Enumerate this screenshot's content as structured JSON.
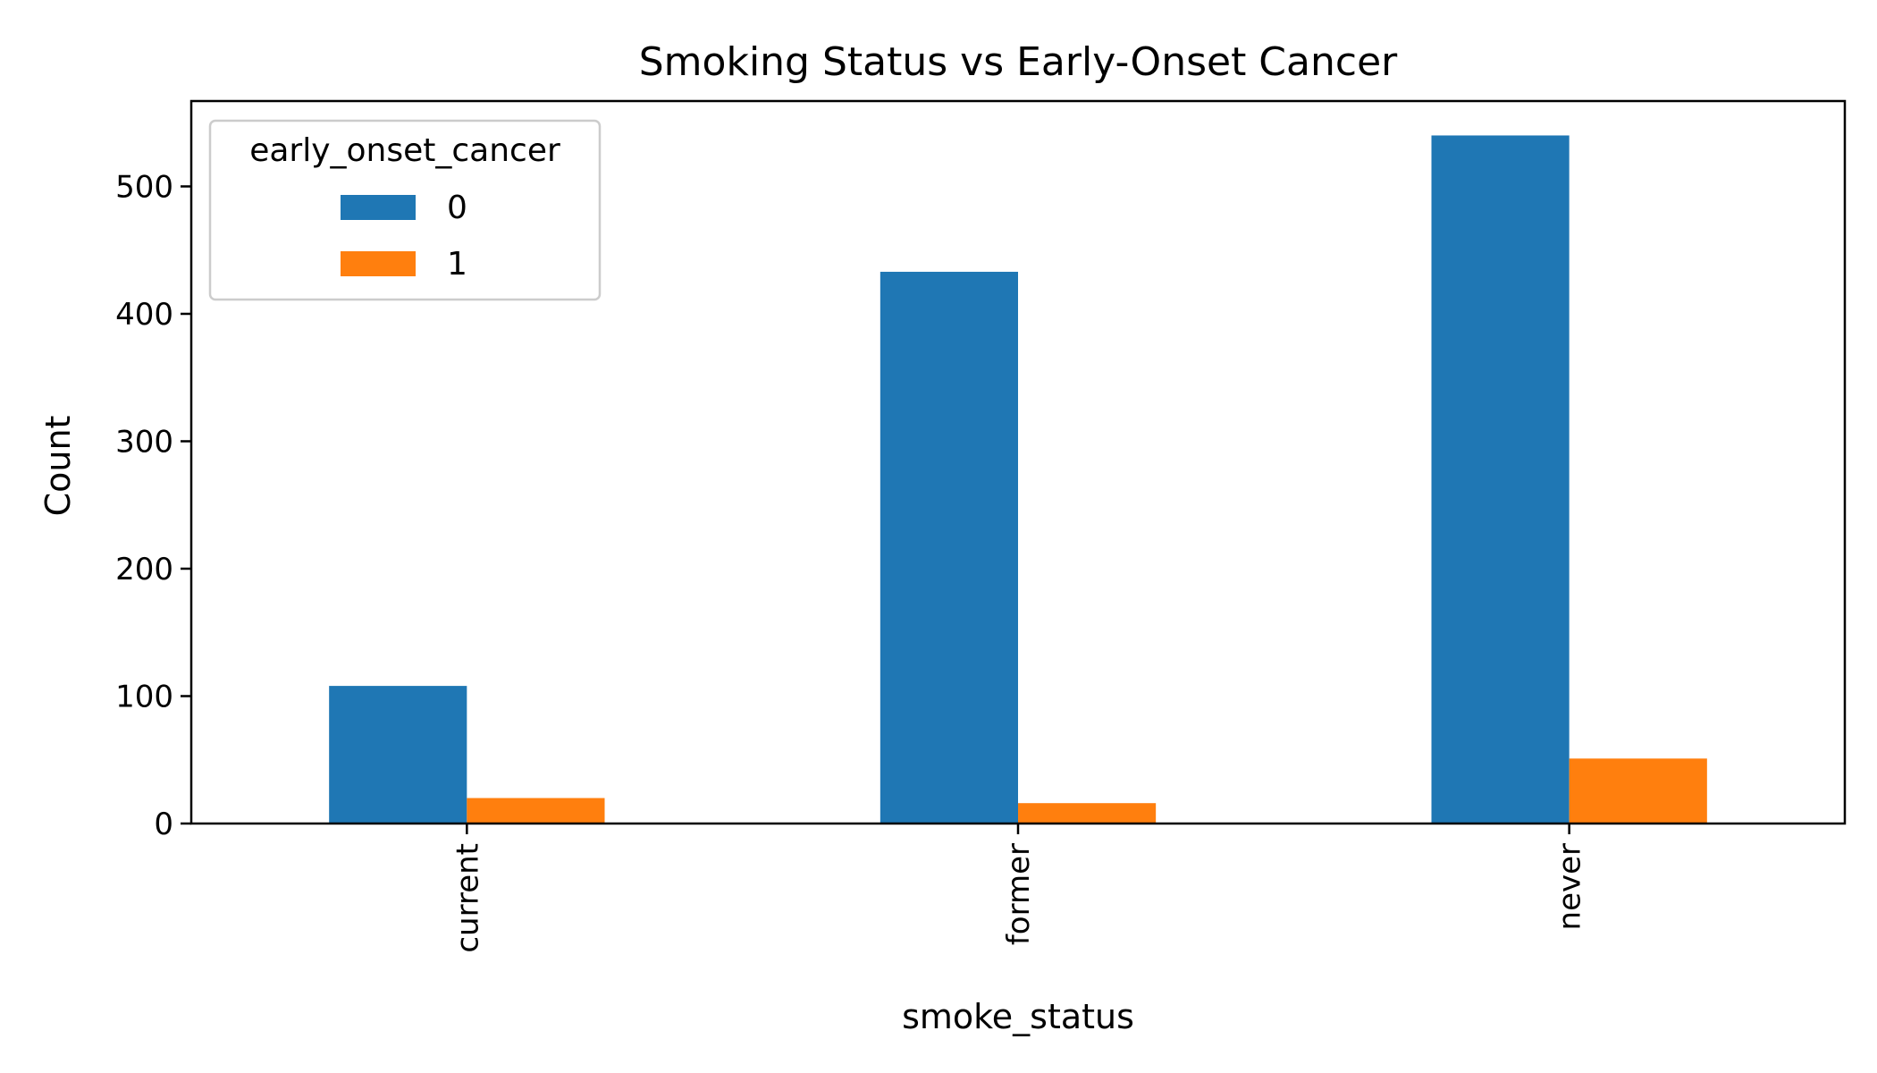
{
  "chart_data": {
    "type": "bar",
    "title": "Smoking Status vs Early-Onset Cancer",
    "xlabel": "smoke_status",
    "ylabel": "Count",
    "categories": [
      "current",
      "former",
      "never"
    ],
    "series": [
      {
        "name": "0",
        "values": [
          108,
          433,
          540
        ],
        "color": "#1f77b4"
      },
      {
        "name": "1",
        "values": [
          20,
          16,
          51
        ],
        "color": "#ff7f0e"
      }
    ],
    "ylim": [
      0,
      567
    ],
    "yticks": [
      0,
      100,
      200,
      300,
      400,
      500
    ],
    "legend": {
      "title": "early_onset_cancer",
      "placement": "top-left"
    },
    "grid": false
  }
}
